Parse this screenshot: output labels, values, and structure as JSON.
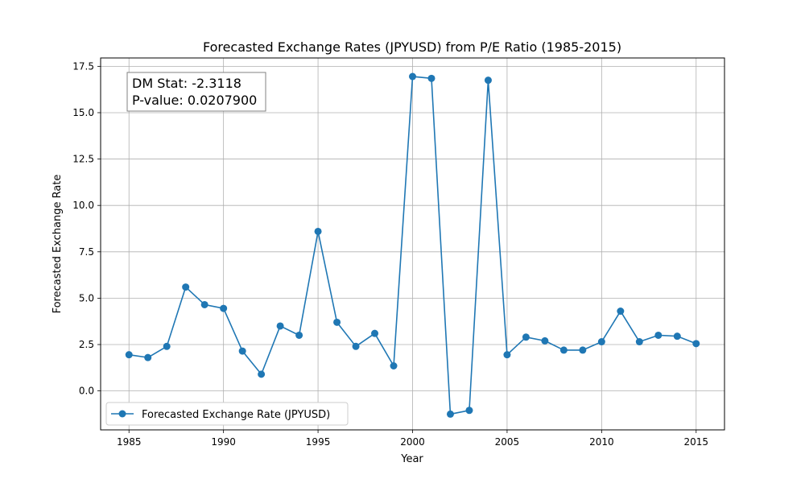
{
  "chart_data": {
    "type": "line",
    "title": "Forecasted Exchange Rates (JPYUSD) from P/E Ratio (1985-2015)",
    "xlabel": "Year",
    "ylabel": "Forecasted Exchange Rate",
    "xlim": [
      1983.5,
      2016.5
    ],
    "ylim": [
      -2.1,
      17.95
    ],
    "x_ticks": [
      1985,
      1990,
      1995,
      2000,
      2005,
      2010,
      2015
    ],
    "y_ticks": [
      0.0,
      2.5,
      5.0,
      7.5,
      10.0,
      12.5,
      15.0,
      17.5
    ],
    "y_tick_labels": [
      "0.0",
      "2.5",
      "5.0",
      "7.5",
      "10.0",
      "12.5",
      "15.0",
      "17.5"
    ],
    "grid": true,
    "legend_position": "lower-left",
    "series": [
      {
        "name": "Forecasted Exchange Rate (JPYUSD)",
        "color": "#1f77b4",
        "marker": "circle",
        "x": [
          1985,
          1986,
          1987,
          1988,
          1989,
          1990,
          1991,
          1992,
          1993,
          1994,
          1995,
          1996,
          1997,
          1998,
          1999,
          2000,
          2001,
          2002,
          2003,
          2004,
          2005,
          2006,
          2007,
          2008,
          2009,
          2010,
          2011,
          2012,
          2013,
          2014,
          2015
        ],
        "values": [
          1.95,
          1.8,
          2.4,
          5.6,
          4.65,
          4.45,
          2.15,
          0.9,
          3.5,
          3.0,
          8.6,
          3.7,
          2.4,
          3.1,
          1.35,
          16.95,
          16.85,
          -1.25,
          -1.05,
          16.75,
          1.95,
          2.9,
          2.7,
          2.2,
          2.2,
          2.65,
          4.3,
          2.65,
          3.0,
          2.95,
          2.55
        ]
      }
    ],
    "annotation": {
      "line1": "DM Stat: -2.3118",
      "line2": "P-value: 0.0207900"
    }
  }
}
